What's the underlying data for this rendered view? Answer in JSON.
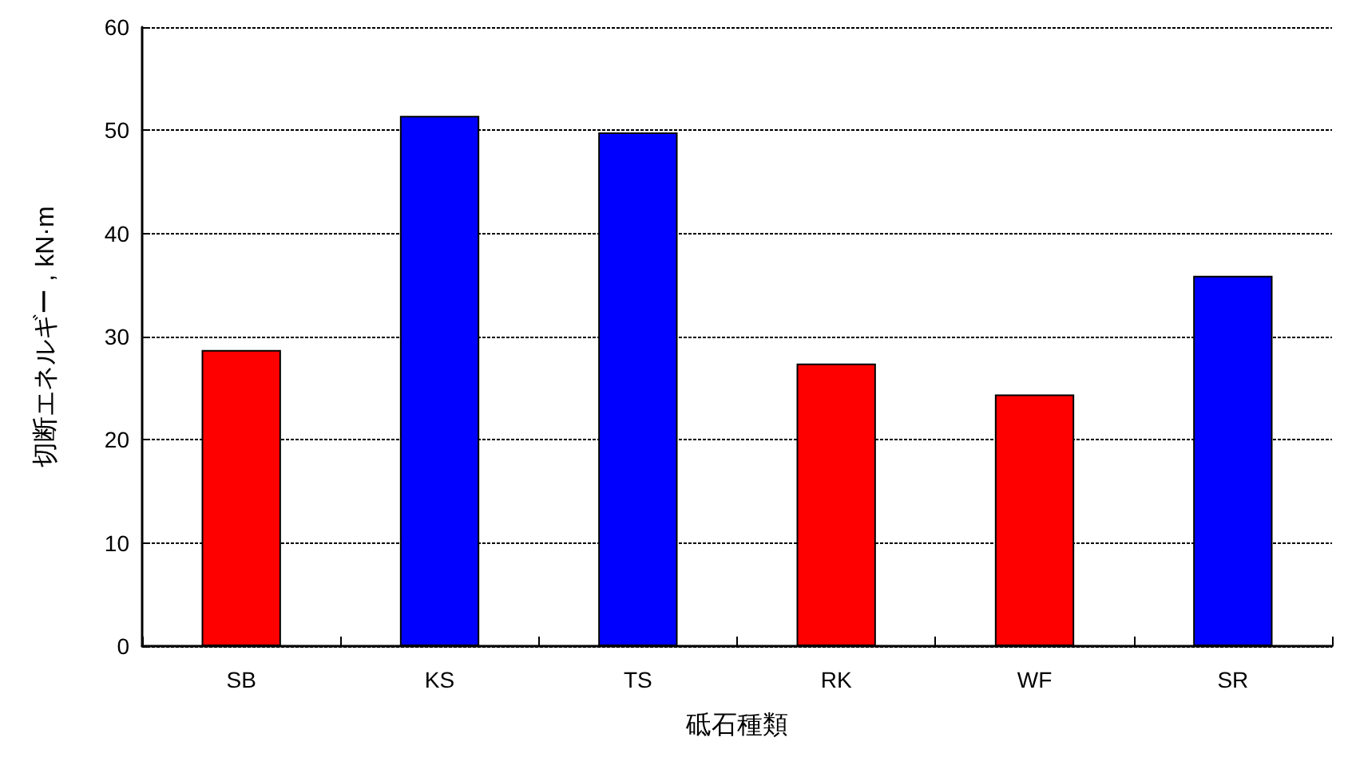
{
  "chart_data": {
    "type": "bar",
    "xlabel": "砥石種類",
    "ylabel": "切断エネルギー , kN·m",
    "categories": [
      "SB",
      "KS",
      "TS",
      "RK",
      "WF",
      "SR"
    ],
    "values": [
      28.7,
      51.4,
      49.8,
      27.4,
      24.4,
      35.9
    ],
    "colors": [
      "#ff0000",
      "#0000ff",
      "#0000ff",
      "#ff0000",
      "#ff0000",
      "#0000ff"
    ],
    "ylim": [
      0,
      60
    ],
    "yticks": [
      0,
      10,
      20,
      30,
      40,
      50,
      60
    ],
    "grid": "y"
  }
}
